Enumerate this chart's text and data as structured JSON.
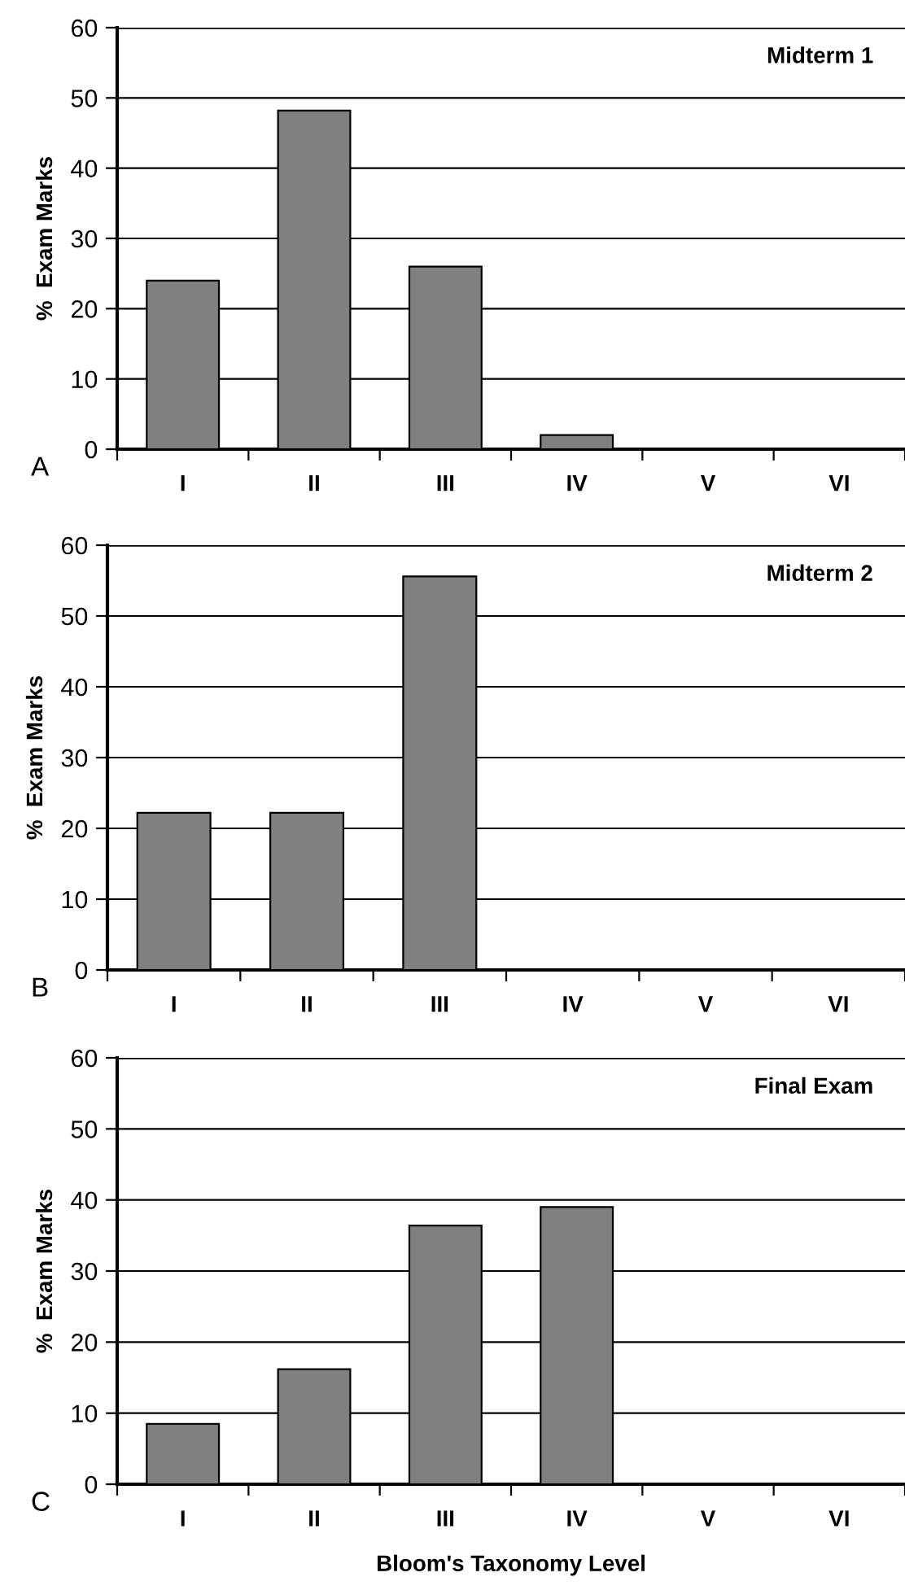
{
  "chart_data": [
    {
      "type": "bar",
      "title": "Midterm 1",
      "ylabel": "%  Exam Marks",
      "categories": [
        "I",
        "II",
        "III",
        "IV",
        "V",
        "VI"
      ],
      "values": [
        24,
        48.2,
        26,
        2,
        0,
        0
      ],
      "color": "#808080",
      "ylim": [
        0,
        60
      ],
      "yticks": [
        0,
        10,
        20,
        30,
        40,
        50,
        60
      ],
      "grid": "y",
      "legend": false,
      "annotations": [
        "A"
      ]
    },
    {
      "type": "bar",
      "title": "Midterm 2",
      "ylabel": "%  Exam Marks",
      "categories": [
        "I",
        "II",
        "III",
        "IV",
        "V",
        "VI"
      ],
      "values": [
        22.2,
        22.2,
        55.6,
        0,
        0,
        0
      ],
      "color": "#808080",
      "ylim": [
        0,
        60
      ],
      "yticks": [
        0,
        10,
        20,
        30,
        40,
        50,
        60
      ],
      "grid": "y",
      "legend": false,
      "annotations": [
        "B"
      ]
    },
    {
      "type": "bar",
      "title": "Final Exam",
      "ylabel": "%  Exam Marks",
      "xlabel": "Bloom's Taxonomy Level",
      "categories": [
        "I",
        "II",
        "III",
        "IV",
        "V",
        "VI"
      ],
      "values": [
        8.5,
        16.2,
        36.4,
        39,
        0,
        0
      ],
      "color": "#808080",
      "ylim": [
        0,
        60
      ],
      "yticks": [
        0,
        10,
        20,
        30,
        40,
        50,
        60
      ],
      "grid": "y",
      "legend": false,
      "annotations": [
        "C"
      ]
    }
  ]
}
